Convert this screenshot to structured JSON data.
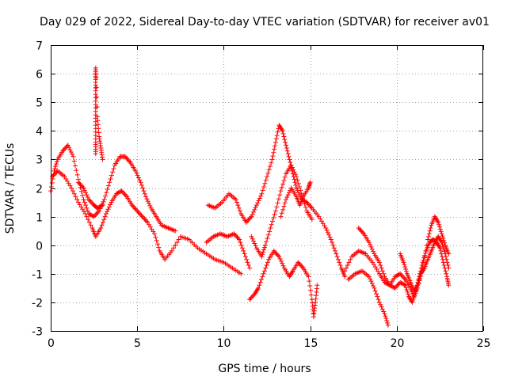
{
  "chart_data": {
    "type": "scatter",
    "title": "Day 029 of 2022, Sidereal Day-to-day VTEC variation (SDTVAR) for receiver av01",
    "xlabel": "GPS time / hours",
    "ylabel": "SDTVAR / TECUs",
    "xlim": [
      0,
      25
    ],
    "ylim": [
      -3,
      7
    ],
    "x_ticks": [
      0,
      5,
      10,
      15,
      20,
      25
    ],
    "y_ticks": [
      -3,
      -2,
      -1,
      0,
      1,
      2,
      3,
      4,
      5,
      6,
      7
    ],
    "grid": true,
    "marker": "plus",
    "color": "#ff0000",
    "series": [
      {
        "name": "trace-1",
        "points": [
          [
            0.0,
            1.9
          ],
          [
            0.2,
            2.6
          ],
          [
            0.4,
            3.0
          ],
          [
            0.7,
            3.3
          ],
          [
            1.0,
            3.5
          ],
          [
            1.3,
            3.1
          ],
          [
            1.6,
            2.3
          ],
          [
            1.9,
            1.6
          ],
          [
            2.2,
            1.1
          ],
          [
            2.5,
            1.0
          ],
          [
            2.8,
            1.2
          ],
          [
            3.1,
            1.6
          ],
          [
            3.4,
            2.2
          ],
          [
            3.7,
            2.8
          ],
          [
            4.0,
            3.1
          ],
          [
            4.3,
            3.1
          ],
          [
            4.6,
            2.9
          ],
          [
            4.9,
            2.6
          ],
          [
            5.2,
            2.2
          ],
          [
            5.5,
            1.7
          ],
          [
            5.8,
            1.3
          ],
          [
            6.1,
            1.0
          ],
          [
            6.4,
            0.7
          ],
          [
            6.8,
            0.6
          ],
          [
            7.2,
            0.5
          ]
        ]
      },
      {
        "name": "trace-2",
        "points": [
          [
            0.1,
            2.4
          ],
          [
            0.4,
            2.6
          ],
          [
            0.8,
            2.4
          ],
          [
            1.2,
            2.0
          ],
          [
            1.6,
            1.5
          ],
          [
            2.0,
            1.1
          ],
          [
            2.4,
            0.6
          ],
          [
            2.6,
            0.3
          ],
          [
            2.9,
            0.6
          ],
          [
            3.2,
            1.1
          ],
          [
            3.5,
            1.5
          ],
          [
            3.8,
            1.8
          ],
          [
            4.1,
            1.9
          ],
          [
            4.4,
            1.7
          ],
          [
            4.7,
            1.4
          ],
          [
            5.0,
            1.2
          ],
          [
            5.3,
            1.0
          ],
          [
            5.6,
            0.8
          ],
          [
            6.0,
            0.4
          ],
          [
            6.3,
            -0.2
          ],
          [
            6.6,
            -0.5
          ],
          [
            7.0,
            -0.2
          ],
          [
            7.5,
            0.3
          ],
          [
            8.0,
            0.2
          ],
          [
            8.5,
            -0.1
          ],
          [
            9.0,
            -0.3
          ],
          [
            9.5,
            -0.5
          ],
          [
            10.0,
            -0.6
          ],
          [
            10.5,
            -0.8
          ],
          [
            11.0,
            -1.0
          ]
        ]
      },
      {
        "name": "trace-3",
        "points": [
          [
            1.6,
            2.2
          ],
          [
            1.9,
            2.0
          ],
          [
            2.2,
            1.6
          ],
          [
            2.5,
            1.4
          ],
          [
            2.7,
            1.3
          ],
          [
            3.0,
            1.4
          ]
        ]
      },
      {
        "name": "spike-2.6h",
        "points": [
          [
            2.6,
            3.2
          ],
          [
            2.6,
            3.6
          ],
          [
            2.6,
            4.2
          ],
          [
            2.6,
            4.8
          ],
          [
            2.6,
            5.4
          ],
          [
            2.6,
            5.9
          ],
          [
            2.6,
            6.2
          ],
          [
            2.7,
            4.5
          ],
          [
            2.8,
            3.8
          ],
          [
            2.9,
            3.4
          ],
          [
            3.0,
            3.0
          ]
        ]
      },
      {
        "name": "trace-4",
        "points": [
          [
            9.0,
            0.1
          ],
          [
            9.4,
            0.3
          ],
          [
            9.8,
            0.4
          ],
          [
            10.2,
            0.3
          ],
          [
            10.6,
            0.4
          ],
          [
            10.9,
            0.2
          ],
          [
            11.2,
            -0.3
          ],
          [
            11.5,
            -0.8
          ]
        ]
      },
      {
        "name": "trace-5",
        "points": [
          [
            9.1,
            1.4
          ],
          [
            9.5,
            1.3
          ],
          [
            9.9,
            1.5
          ],
          [
            10.3,
            1.8
          ],
          [
            10.7,
            1.6
          ],
          [
            11.0,
            1.1
          ],
          [
            11.3,
            0.8
          ],
          [
            11.6,
            1.0
          ],
          [
            11.9,
            1.4
          ],
          [
            12.2,
            1.8
          ],
          [
            12.5,
            2.4
          ],
          [
            12.8,
            3.0
          ],
          [
            13.0,
            3.6
          ],
          [
            13.2,
            4.2
          ],
          [
            13.4,
            4.0
          ],
          [
            13.6,
            3.5
          ],
          [
            13.8,
            3.0
          ],
          [
            14.0,
            2.5
          ],
          [
            14.2,
            2.0
          ],
          [
            14.5,
            1.6
          ],
          [
            14.8,
            1.5
          ],
          [
            15.1,
            1.3
          ],
          [
            15.5,
            1.0
          ],
          [
            15.9,
            0.6
          ],
          [
            16.2,
            0.2
          ],
          [
            16.5,
            -0.3
          ],
          [
            16.8,
            -0.8
          ],
          [
            17.0,
            -1.1
          ]
        ]
      },
      {
        "name": "trace-6",
        "points": [
          [
            11.6,
            0.3
          ],
          [
            11.9,
            -0.1
          ],
          [
            12.2,
            -0.4
          ],
          [
            12.4,
            0.0
          ],
          [
            12.7,
            0.6
          ],
          [
            13.0,
            1.2
          ],
          [
            13.3,
            1.9
          ],
          [
            13.6,
            2.5
          ],
          [
            13.9,
            2.8
          ],
          [
            14.2,
            2.4
          ],
          [
            14.5,
            1.8
          ],
          [
            14.8,
            1.2
          ],
          [
            15.1,
            0.9
          ]
        ]
      },
      {
        "name": "trace-7",
        "points": [
          [
            11.5,
            -1.9
          ],
          [
            11.8,
            -1.7
          ],
          [
            12.0,
            -1.5
          ],
          [
            12.3,
            -1.0
          ],
          [
            12.6,
            -0.5
          ],
          [
            12.9,
            -0.2
          ],
          [
            13.2,
            -0.4
          ],
          [
            13.5,
            -0.8
          ],
          [
            13.8,
            -1.1
          ],
          [
            14.0,
            -0.9
          ],
          [
            14.3,
            -0.6
          ],
          [
            14.6,
            -0.8
          ],
          [
            14.9,
            -1.1
          ],
          [
            15.1,
            -1.9
          ],
          [
            15.2,
            -2.5
          ],
          [
            15.3,
            -2.0
          ],
          [
            15.4,
            -1.4
          ]
        ]
      },
      {
        "name": "trace-8",
        "points": [
          [
            13.3,
            1.0
          ],
          [
            13.6,
            1.6
          ],
          [
            13.9,
            2.0
          ],
          [
            14.2,
            1.7
          ],
          [
            14.4,
            1.4
          ],
          [
            14.6,
            1.7
          ],
          [
            14.9,
            2.0
          ],
          [
            15.0,
            2.2
          ]
        ]
      },
      {
        "name": "trace-9",
        "points": [
          [
            17.0,
            -0.9
          ],
          [
            17.4,
            -0.4
          ],
          [
            17.8,
            -0.2
          ],
          [
            18.2,
            -0.3
          ],
          [
            18.6,
            -0.6
          ],
          [
            19.0,
            -1.0
          ],
          [
            19.3,
            -1.3
          ],
          [
            19.6,
            -1.4
          ],
          [
            19.9,
            -1.1
          ],
          [
            20.2,
            -1.0
          ],
          [
            20.5,
            -1.2
          ],
          [
            20.8,
            -1.5
          ],
          [
            21.0,
            -1.8
          ],
          [
            21.2,
            -1.5
          ],
          [
            21.5,
            -0.8
          ],
          [
            21.8,
            0.2
          ],
          [
            22.0,
            0.7
          ],
          [
            22.2,
            1.0
          ],
          [
            22.4,
            0.8
          ],
          [
            22.6,
            0.4
          ],
          [
            22.8,
            0.0
          ],
          [
            23.0,
            -0.3
          ]
        ]
      },
      {
        "name": "trace-10",
        "points": [
          [
            17.2,
            -1.2
          ],
          [
            17.6,
            -1.0
          ],
          [
            18.0,
            -0.9
          ],
          [
            18.4,
            -1.1
          ],
          [
            18.7,
            -1.5
          ],
          [
            19.0,
            -2.0
          ],
          [
            19.3,
            -2.4
          ],
          [
            19.5,
            -2.8
          ]
        ]
      },
      {
        "name": "trace-11",
        "points": [
          [
            17.8,
            0.6
          ],
          [
            18.1,
            0.4
          ],
          [
            18.4,
            0.1
          ],
          [
            18.7,
            -0.3
          ],
          [
            19.0,
            -0.6
          ],
          [
            19.3,
            -1.1
          ],
          [
            19.6,
            -1.4
          ],
          [
            19.9,
            -1.5
          ],
          [
            20.2,
            -1.3
          ],
          [
            20.5,
            -1.4
          ],
          [
            20.7,
            -1.8
          ],
          [
            20.9,
            -2.0
          ],
          [
            21.1,
            -1.6
          ],
          [
            21.3,
            -1.1
          ],
          [
            21.5,
            -0.6
          ],
          [
            21.7,
            -0.2
          ],
          [
            21.9,
            0.1
          ],
          [
            22.1,
            0.2
          ],
          [
            22.3,
            0.1
          ],
          [
            22.5,
            -0.1
          ],
          [
            22.7,
            -0.6
          ],
          [
            22.9,
            -1.1
          ],
          [
            23.0,
            -1.4
          ]
        ]
      },
      {
        "name": "trace-12",
        "points": [
          [
            20.2,
            -0.3
          ],
          [
            20.4,
            -0.6
          ],
          [
            20.6,
            -1.0
          ],
          [
            20.8,
            -1.3
          ],
          [
            21.0,
            -1.6
          ],
          [
            21.2,
            -1.4
          ],
          [
            21.4,
            -1.0
          ],
          [
            21.6,
            -0.8
          ],
          [
            21.8,
            -0.5
          ],
          [
            22.0,
            -0.2
          ],
          [
            22.2,
            0.1
          ],
          [
            22.4,
            0.3
          ],
          [
            22.6,
            0.1
          ],
          [
            22.8,
            -0.3
          ],
          [
            23.0,
            -0.8
          ]
        ]
      }
    ]
  }
}
